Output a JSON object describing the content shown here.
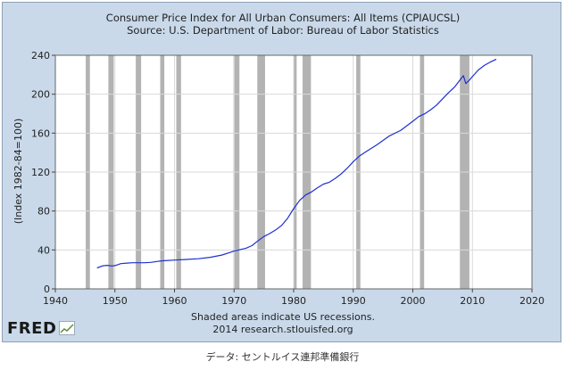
{
  "chart_data": {
    "type": "line",
    "title": "Consumer Price Index for All Urban Consumers: All Items (CPIAUCSL)",
    "subtitle": "Source: U.S. Department of Labor: Bureau of Labor Statistics",
    "ylabel": "(Index 1982-84=100)",
    "xlabel": "",
    "xlim": [
      1940,
      2020
    ],
    "ylim": [
      0,
      240
    ],
    "x_ticks": [
      "1940",
      "1950",
      "1960",
      "1970",
      "1980",
      "1990",
      "2000",
      "2010",
      "2020"
    ],
    "y_ticks": [
      "0",
      "40",
      "80",
      "120",
      "160",
      "200",
      "240"
    ],
    "grid": true,
    "line_color": "#1f2fd0",
    "recession_color": "#b3b3b3",
    "recessions": [
      [
        1945.1,
        1945.8
      ],
      [
        1948.9,
        1949.8
      ],
      [
        1953.5,
        1954.4
      ],
      [
        1957.6,
        1958.3
      ],
      [
        1960.3,
        1961.1
      ],
      [
        1969.9,
        1970.9
      ],
      [
        1973.9,
        1975.2
      ],
      [
        1980.0,
        1980.5
      ],
      [
        1981.5,
        1982.9
      ],
      [
        1990.5,
        1991.2
      ],
      [
        2001.2,
        2001.9
      ],
      [
        2007.9,
        2009.5
      ]
    ],
    "series": [
      {
        "x": [
          1947.0,
          1948.0,
          1948.7,
          1949.5,
          1950.0,
          1951.0,
          1952.0,
          1953.0,
          1954.0,
          1955.0,
          1956.0,
          1957.0,
          1958.0,
          1959.0,
          1960.0,
          1962.0,
          1964.0,
          1966.0,
          1968.0,
          1970.0,
          1972.0,
          1973.0,
          1974.0,
          1975.0,
          1976.0,
          1977.0,
          1978.0,
          1979.0,
          1980.0,
          1981.0,
          1982.0,
          1983.0,
          1984.0,
          1985.0,
          1986.0,
          1987.0,
          1988.0,
          1989.0,
          1990.0,
          1991.0,
          1992.0,
          1994.0,
          1996.0,
          1998.0,
          2000.0,
          2001.0,
          2002.0,
          2003.0,
          2004.0,
          2005.0,
          2006.0,
          2007.0,
          2008.0,
          2008.5,
          2008.9,
          2009.5,
          2010.0,
          2011.0,
          2012.0,
          2013.0,
          2014.0
        ],
        "values": [
          21.5,
          23.7,
          24.2,
          23.5,
          23.9,
          25.9,
          26.5,
          26.8,
          26.8,
          26.8,
          27.2,
          28.1,
          28.9,
          29.2,
          29.6,
          30.2,
          31.0,
          32.4,
          34.8,
          38.8,
          41.8,
          44.4,
          49.3,
          53.8,
          56.9,
          60.6,
          65.2,
          72.6,
          82.4,
          90.9,
          96.5,
          99.6,
          103.9,
          107.6,
          109.6,
          113.6,
          118.3,
          124.0,
          130.7,
          136.2,
          140.3,
          148.2,
          156.9,
          163.0,
          172.2,
          177.1,
          179.9,
          184.0,
          188.9,
          195.3,
          201.6,
          207.3,
          215.3,
          219.0,
          211.0,
          214.5,
          218.1,
          224.9,
          229.6,
          233.0,
          236.0
        ]
      }
    ],
    "notes": [
      "Shaded areas indicate US recessions.",
      "2014 research.stlouisfed.org"
    ]
  },
  "logo": {
    "text": "FRED"
  },
  "caption": "データ: セントルイス連邦準備銀行"
}
